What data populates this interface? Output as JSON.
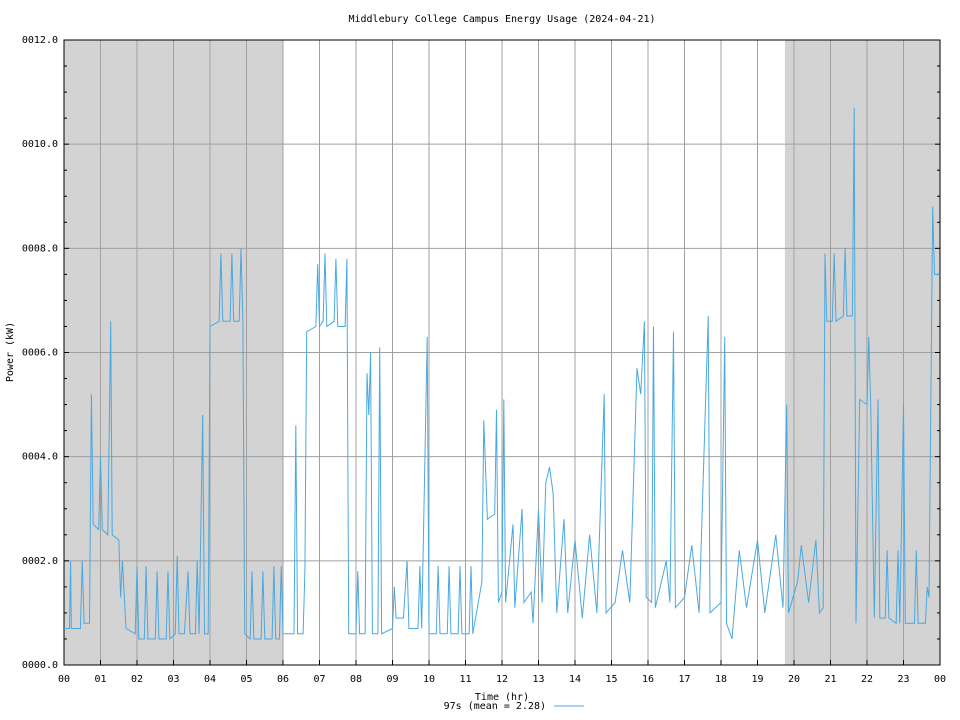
{
  "chart_data": {
    "type": "line",
    "title": "Middlebury College Campus Energy Usage (2024-04-21)",
    "x_label": "Time (hr)",
    "y_label": "Power (kW)",
    "xlim": [
      0,
      24
    ],
    "ylim": [
      0,
      12
    ],
    "xticks": [
      {
        "value": 0,
        "label": "00"
      },
      {
        "value": 1,
        "label": "01"
      },
      {
        "value": 2,
        "label": "02"
      },
      {
        "value": 3,
        "label": "03"
      },
      {
        "value": 4,
        "label": "04"
      },
      {
        "value": 5,
        "label": "05"
      },
      {
        "value": 6,
        "label": "06"
      },
      {
        "value": 7,
        "label": "07"
      },
      {
        "value": 8,
        "label": "08"
      },
      {
        "value": 9,
        "label": "09"
      },
      10,
      11,
      12,
      13,
      14,
      15,
      16,
      17,
      18,
      19,
      20,
      21,
      22,
      23,
      {
        "value": 24,
        "label": "00"
      }
    ],
    "yticks": [
      {
        "value": 0,
        "label": "0000.0"
      },
      {
        "value": 2,
        "label": "0002.0"
      },
      {
        "value": 4,
        "label": "0004.0"
      },
      {
        "value": 6,
        "label": "0006.0"
      },
      {
        "value": 8,
        "label": "0008.0"
      },
      {
        "value": 10,
        "label": "0010.0"
      },
      {
        "value": 12,
        "label": "0012.0"
      }
    ],
    "grid": true,
    "shaded_ranges": [
      [
        0,
        6
      ],
      [
        19.75,
        24
      ]
    ],
    "shade_color": "#d3d3d3",
    "legend": "bottom",
    "x": [
      0,
      0.15,
      0.18,
      0.2,
      0.45,
      0.5,
      0.55,
      0.7,
      0.75,
      0.8,
      0.95,
      1.0,
      1.05,
      1.2,
      1.28,
      1.32,
      1.5,
      1.55,
      1.6,
      1.7,
      1.95,
      2.0,
      2.05,
      2.2,
      2.25,
      2.3,
      2.5,
      2.55,
      2.6,
      2.8,
      2.85,
      2.9,
      3.05,
      3.1,
      3.15,
      3.3,
      3.4,
      3.45,
      3.6,
      3.65,
      3.7,
      3.8,
      3.85,
      3.95,
      4.0,
      4.25,
      4.3,
      4.35,
      4.55,
      4.6,
      4.65,
      4.8,
      4.85,
      4.9,
      4.95,
      5.1,
      5.15,
      5.2,
      5.4,
      5.45,
      5.5,
      5.7,
      5.75,
      5.8,
      5.9,
      5.95,
      6.0,
      6.3,
      6.35,
      6.4,
      6.55,
      6.6,
      6.65,
      6.9,
      6.95,
      7.0,
      7.1,
      7.15,
      7.2,
      7.4,
      7.45,
      7.5,
      7.7,
      7.75,
      7.8,
      8.0,
      8.05,
      8.1,
      8.25,
      8.3,
      8.35,
      8.4,
      8.45,
      8.6,
      8.65,
      8.7,
      9.0,
      9.05,
      9.1,
      9.3,
      9.4,
      9.45,
      9.7,
      9.75,
      9.8,
      9.95,
      10.0,
      10.2,
      10.25,
      10.3,
      10.5,
      10.55,
      10.6,
      10.8,
      10.85,
      10.9,
      11.1,
      11.15,
      11.2,
      11.45,
      11.5,
      11.6,
      11.8,
      11.85,
      11.9,
      12.0,
      12.05,
      12.1,
      12.3,
      12.35,
      12.55,
      12.6,
      12.8,
      12.85,
      13.0,
      13.1,
      13.2,
      13.3,
      13.4,
      13.5,
      13.7,
      13.8,
      14.0,
      14.2,
      14.4,
      14.6,
      14.8,
      14.85,
      15.1,
      15.3,
      15.5,
      15.7,
      15.8,
      15.9,
      15.95,
      16.1,
      16.15,
      16.2,
      16.5,
      16.6,
      16.7,
      16.75,
      17.0,
      17.2,
      17.4,
      17.65,
      17.7,
      18.0,
      18.1,
      18.15,
      18.3,
      18.5,
      18.7,
      19.0,
      19.2,
      19.5,
      19.7,
      19.8,
      19.85,
      20.1,
      20.2,
      20.4,
      20.6,
      20.7,
      20.8,
      20.85,
      20.9,
      21.05,
      21.1,
      21.15,
      21.35,
      21.4,
      21.45,
      21.6,
      21.65,
      21.7,
      21.8,
      22.0,
      22.05,
      22.1,
      22.2,
      22.3,
      22.35,
      22.5,
      22.55,
      22.6,
      22.8,
      22.85,
      22.9,
      23.0,
      23.05,
      23.3,
      23.35,
      23.4,
      23.6,
      23.65,
      23.7,
      23.8,
      23.85,
      24.0
    ],
    "series": [
      {
        "name": "97s (mean = 2.28)",
        "color": "#4aa8e0",
        "values": [
          0.7,
          0.7,
          2.0,
          0.7,
          0.7,
          2.0,
          0.8,
          0.8,
          5.2,
          2.7,
          2.6,
          4.0,
          2.6,
          2.5,
          6.6,
          2.5,
          2.4,
          1.3,
          2.0,
          0.7,
          0.6,
          1.9,
          0.5,
          0.5,
          1.9,
          0.5,
          0.5,
          1.8,
          0.5,
          0.5,
          1.8,
          0.5,
          0.6,
          2.1,
          0.6,
          0.6,
          1.8,
          0.6,
          0.6,
          2.0,
          0.6,
          4.8,
          0.6,
          0.6,
          6.5,
          6.6,
          7.9,
          6.6,
          6.6,
          7.9,
          6.6,
          6.6,
          8.0,
          6.6,
          0.6,
          0.5,
          1.8,
          0.5,
          0.5,
          1.8,
          0.5,
          0.5,
          1.9,
          0.5,
          0.5,
          1.9,
          0.6,
          0.6,
          4.6,
          0.6,
          0.6,
          1.8,
          6.4,
          6.5,
          7.7,
          6.5,
          6.6,
          7.9,
          6.5,
          6.6,
          7.8,
          6.5,
          6.5,
          7.8,
          0.6,
          0.6,
          1.8,
          0.6,
          0.6,
          5.6,
          4.8,
          6.0,
          0.6,
          0.6,
          6.1,
          0.6,
          0.7,
          1.5,
          0.9,
          0.9,
          2.0,
          0.7,
          0.7,
          1.9,
          0.7,
          6.3,
          0.6,
          0.6,
          1.9,
          0.6,
          0.6,
          1.9,
          0.6,
          0.6,
          1.9,
          0.6,
          0.6,
          1.9,
          0.6,
          1.6,
          4.7,
          2.8,
          2.9,
          4.9,
          1.2,
          1.4,
          5.1,
          1.2,
          2.7,
          1.1,
          3.0,
          1.2,
          1.4,
          0.8,
          3.0,
          1.2,
          3.5,
          3.8,
          3.3,
          1.0,
          2.8,
          1.0,
          2.4,
          0.9,
          2.5,
          1.0,
          5.2,
          1.0,
          1.2,
          2.2,
          1.2,
          5.7,
          5.2,
          6.6,
          1.3,
          1.2,
          6.5,
          1.1,
          2.0,
          1.2,
          6.4,
          1.1,
          1.3,
          2.3,
          1.0,
          6.7,
          1.0,
          1.2,
          6.3,
          0.8,
          0.5,
          2.2,
          1.1,
          2.4,
          1.0,
          2.5,
          1.1,
          5.0,
          1.0,
          1.6,
          2.3,
          1.2,
          2.4,
          1.0,
          1.1,
          7.9,
          6.6,
          6.6,
          7.9,
          6.6,
          6.7,
          8.0,
          6.7,
          6.7,
          10.7,
          0.8,
          5.1,
          5.0,
          6.3,
          5.0,
          0.9,
          5.1,
          0.9,
          0.9,
          2.2,
          0.9,
          0.8,
          2.2,
          0.8,
          5.0,
          0.8,
          0.8,
          2.2,
          0.8,
          0.8,
          1.5,
          1.3,
          8.8,
          7.5,
          7.5
        ]
      }
    ]
  }
}
